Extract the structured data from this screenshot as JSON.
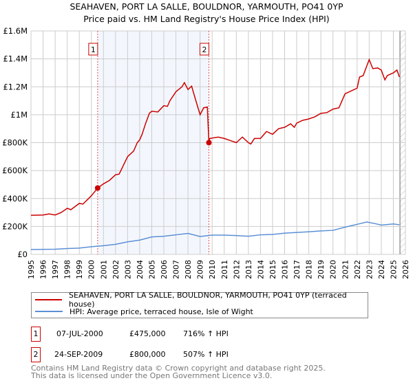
{
  "chart_data": {
    "type": "line",
    "title": "SEAHAVEN, PORT LA SALLE, BOULDNOR, YARMOUTH, PO41 0YP",
    "subtitle": "Price paid vs. HM Land Registry's House Price Index (HPI)",
    "xlim": [
      1995,
      2026
    ],
    "ylim": [
      0,
      1600000
    ],
    "yticks": [
      0,
      200000,
      400000,
      600000,
      800000,
      1000000,
      1200000,
      1400000,
      1600000
    ],
    "ytick_labels": [
      "£0",
      "£200K",
      "£400K",
      "£600K",
      "£800K",
      "£1M",
      "£1.2M",
      "£1.4M",
      "£1.6M"
    ],
    "xticks": [
      1995,
      1996,
      1997,
      1998,
      1999,
      2000,
      2001,
      2002,
      2003,
      2004,
      2005,
      2006,
      2007,
      2008,
      2009,
      2010,
      2011,
      2012,
      2013,
      2014,
      2015,
      2016,
      2017,
      2018,
      2019,
      2020,
      2021,
      2022,
      2023,
      2024,
      2025,
      2026
    ],
    "grid": true,
    "shaded_range": [
      2000.52,
      2009.73
    ],
    "hatched_from": 2025.55,
    "series": [
      {
        "name": "SEAHAVEN, PORT LA SALLE, BOULDNOR, YARMOUTH, PO41 0YP (terraced house)",
        "color": "#cc0000",
        "x": [
          1995,
          1996,
          1996.5,
          1997,
          1997.5,
          1998,
          1998.3,
          1999,
          1999.3,
          2000,
          2000.52,
          2001,
          2001.5,
          2002,
          2002.3,
          2003,
          2003.5,
          2003.8,
          2004,
          2004.2,
          2004.5,
          2004.8,
          2005,
          2005.5,
          2006,
          2006.3,
          2006.5,
          2007,
          2007.5,
          2007.7,
          2008,
          2008.3,
          2008.6,
          2009,
          2009.3,
          2009.6,
          2009.73,
          2009.8,
          2010.5,
          2011,
          2011.5,
          2012,
          2012.5,
          2013,
          2013.2,
          2013.5,
          2014,
          2014.5,
          2015,
          2015.5,
          2016,
          2016.5,
          2016.8,
          2017,
          2017.5,
          2018,
          2018.5,
          2019,
          2019.5,
          2020,
          2020.5,
          2021,
          2021.5,
          2022,
          2022.2,
          2022.5,
          2023,
          2023.3,
          2023.7,
          2024,
          2024.3,
          2024.5,
          2025,
          2025.3,
          2025.5
        ],
        "y": [
          280000,
          282000,
          290000,
          282000,
          300000,
          330000,
          320000,
          365000,
          360000,
          420000,
          475000,
          505000,
          530000,
          570000,
          575000,
          700000,
          740000,
          800000,
          820000,
          860000,
          940000,
          1010000,
          1025000,
          1020000,
          1065000,
          1060000,
          1100000,
          1165000,
          1200000,
          1230000,
          1180000,
          1205000,
          1115000,
          1000000,
          1050000,
          1055000,
          800000,
          830000,
          840000,
          830000,
          815000,
          800000,
          840000,
          800000,
          790000,
          830000,
          830000,
          880000,
          860000,
          900000,
          910000,
          935000,
          910000,
          940000,
          960000,
          970000,
          985000,
          1010000,
          1015000,
          1040000,
          1050000,
          1150000,
          1170000,
          1190000,
          1270000,
          1280000,
          1395000,
          1330000,
          1335000,
          1320000,
          1250000,
          1280000,
          1300000,
          1320000,
          1270000
        ]
      },
      {
        "name": "HPI: Average price, terraced house, Isle of Wight",
        "color": "#5b8fd6",
        "x": [
          1995,
          1997,
          1998,
          1999,
          2000,
          2001,
          2002,
          2003,
          2004,
          2005,
          2006,
          2007,
          2008,
          2009,
          2010,
          2011,
          2012,
          2013,
          2014,
          2015,
          2016,
          2017,
          2018,
          2019,
          2020,
          2021,
          2022,
          2022.8,
          2023.5,
          2024,
          2025,
          2025.5
        ],
        "y": [
          35000,
          37000,
          42000,
          45000,
          55000,
          62000,
          72000,
          90000,
          102000,
          125000,
          130000,
          140000,
          150000,
          128000,
          138000,
          138000,
          135000,
          130000,
          140000,
          143000,
          152000,
          157000,
          162000,
          168000,
          172000,
          195000,
          215000,
          232000,
          220000,
          210000,
          218000,
          212000
        ]
      }
    ],
    "sales": [
      {
        "label": "1",
        "x": 2000.52,
        "y": 475000,
        "date": "07-JUL-2000",
        "price": "£475,000",
        "hpi": "716% ↑ HPI"
      },
      {
        "label": "2",
        "x": 2009.73,
        "y": 800000,
        "date": "24-SEP-2009",
        "price": "£800,000",
        "hpi": "507% ↑ HPI"
      }
    ]
  },
  "footer": {
    "line1": "Contains HM Land Registry data © Crown copyright and database right 2025.",
    "line2": "This data is licensed under the Open Government Licence v3.0."
  }
}
